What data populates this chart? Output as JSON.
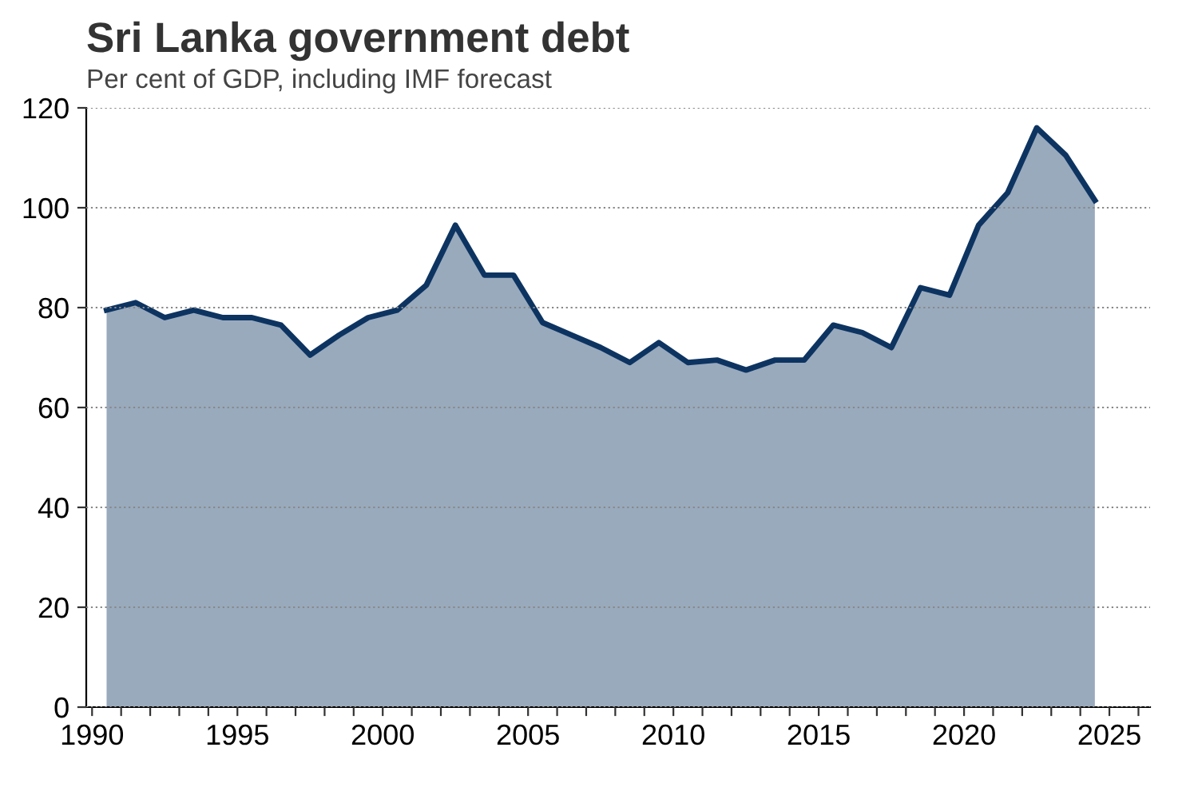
{
  "chart_data": {
    "type": "area",
    "title": "Sri Lanka government debt",
    "subtitle": "Per cent of GDP, including IMF forecast",
    "x": [
      1990.5,
      1991.5,
      1992.5,
      1993.5,
      1994.5,
      1995.5,
      1996.5,
      1997.5,
      1998.5,
      1999.5,
      2000.5,
      2001.5,
      2002.5,
      2003.5,
      2004.5,
      2005.5,
      2006.5,
      2007.5,
      2008.5,
      2009.5,
      2010.5,
      2011.5,
      2012.5,
      2013.5,
      2014.5,
      2015.5,
      2016.5,
      2017.5,
      2018.5,
      2019.5,
      2020.5,
      2021.5,
      2022.5,
      2023.5,
      2024.5
    ],
    "series": [
      {
        "color": "#0d3461",
        "values": [
          79.5,
          81,
          78,
          79.5,
          78,
          78,
          76.5,
          70.5,
          74.5,
          78,
          79.5,
          84.5,
          96.5,
          86.5,
          86.5,
          77,
          74.5,
          72,
          69,
          73,
          69,
          69.5,
          67.5,
          69.5,
          69.5,
          76.5,
          75,
          72,
          84,
          82.5,
          96.5,
          103,
          116,
          110.5,
          101.5
        ]
      }
    ],
    "xlim": [
      1989.8,
      2026.4
    ],
    "ylim": [
      0,
      120
    ],
    "xticks": [
      1990,
      {
        "value": 1991,
        "label": null
      },
      {
        "value": 1992,
        "label": null
      },
      {
        "value": 1993,
        "label": null
      },
      {
        "value": 1994,
        "label": null
      },
      1995,
      {
        "value": 1996,
        "label": null
      },
      {
        "value": 1997,
        "label": null
      },
      {
        "value": 1998,
        "label": null
      },
      {
        "value": 1999,
        "label": null
      },
      2000,
      {
        "value": 2001,
        "label": null
      },
      {
        "value": 2002,
        "label": null
      },
      {
        "value": 2003,
        "label": null
      },
      {
        "value": 2004,
        "label": null
      },
      2005,
      {
        "value": 2006,
        "label": null
      },
      {
        "value": 2007,
        "label": null
      },
      {
        "value": 2008,
        "label": null
      },
      {
        "value": 2009,
        "label": null
      },
      2010,
      {
        "value": 2011,
        "label": null
      },
      {
        "value": 2012,
        "label": null
      },
      {
        "value": 2013,
        "label": null
      },
      {
        "value": 2014,
        "label": null
      },
      2015,
      {
        "value": 2016,
        "label": null
      },
      {
        "value": 2017,
        "label": null
      },
      {
        "value": 2018,
        "label": null
      },
      {
        "value": 2019,
        "label": null
      },
      2020,
      {
        "value": 2021,
        "label": null
      },
      {
        "value": 2022,
        "label": null
      },
      {
        "value": 2023,
        "label": null
      },
      {
        "value": 2024,
        "label": null
      },
      2025,
      {
        "value": 2026,
        "label": null
      }
    ],
    "yticks": [
      0,
      20,
      40,
      60,
      80,
      100,
      120
    ],
    "grid": "y",
    "legend": false,
    "line_style": "solid",
    "marker": "none"
  }
}
